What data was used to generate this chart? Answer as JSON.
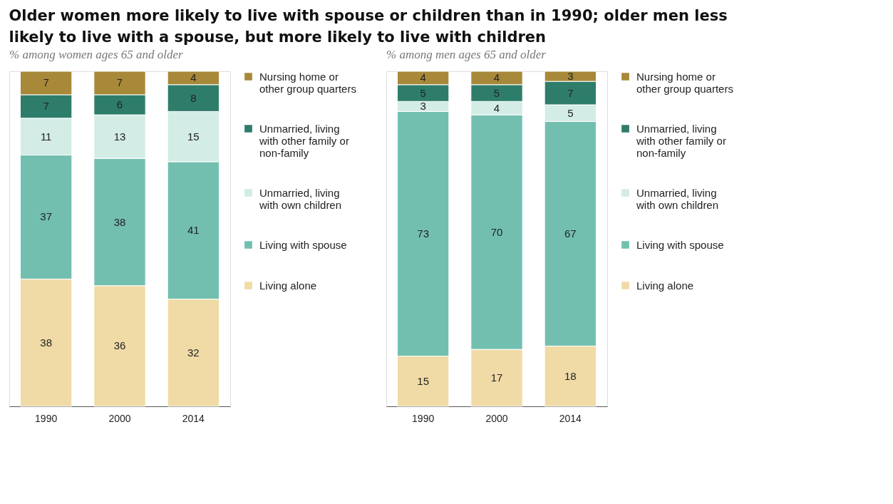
{
  "chart_data": [
    {
      "type": "bar",
      "title": "Older women more likely to live with spouse or children than in 1990; older men less likely to live with a spouse, but more likely to live with children",
      "subtitle": "% among women ages 65 and older",
      "categories": [
        "1990",
        "2000",
        "2014"
      ],
      "stacked": true,
      "data_labels": true,
      "legend": "right",
      "tick_labels": "x",
      "series": [
        {
          "name": "Living alone",
          "color": "#f0dba6",
          "values": [
            38,
            36,
            32
          ]
        },
        {
          "name": "Living with spouse",
          "color": "#72bfb0",
          "values": [
            37,
            38,
            41
          ]
        },
        {
          "name": "Unmarried, living with own children",
          "color": "#d3ece5",
          "values": [
            11,
            13,
            15
          ]
        },
        {
          "name": "Unmarried, living with other family or non-family",
          "color": "#2e7d6b",
          "values": [
            7,
            6,
            8
          ]
        },
        {
          "name": "Nursing home or other group quarters",
          "color": "#a8893a",
          "values": [
            7,
            7,
            4
          ]
        }
      ]
    },
    {
      "type": "bar",
      "subtitle": "% among men ages 65 and older",
      "categories": [
        "1990",
        "2000",
        "2014"
      ],
      "stacked": true,
      "data_labels": true,
      "legend": "right",
      "tick_labels": "x",
      "series": [
        {
          "name": "Living alone",
          "color": "#f0dba6",
          "values": [
            15,
            17,
            18
          ]
        },
        {
          "name": "Living with spouse",
          "color": "#72bfb0",
          "values": [
            73,
            70,
            67
          ]
        },
        {
          "name": "Unmarried, living with own children",
          "color": "#d3ece5",
          "values": [
            3,
            4,
            5
          ]
        },
        {
          "name": "Unmarried, living with other family or non-family",
          "color": "#2e7d6b",
          "values": [
            5,
            5,
            7
          ]
        },
        {
          "name": "Nursing home or other group quarters",
          "color": "#a8893a",
          "values": [
            4,
            4,
            3
          ]
        }
      ]
    }
  ]
}
